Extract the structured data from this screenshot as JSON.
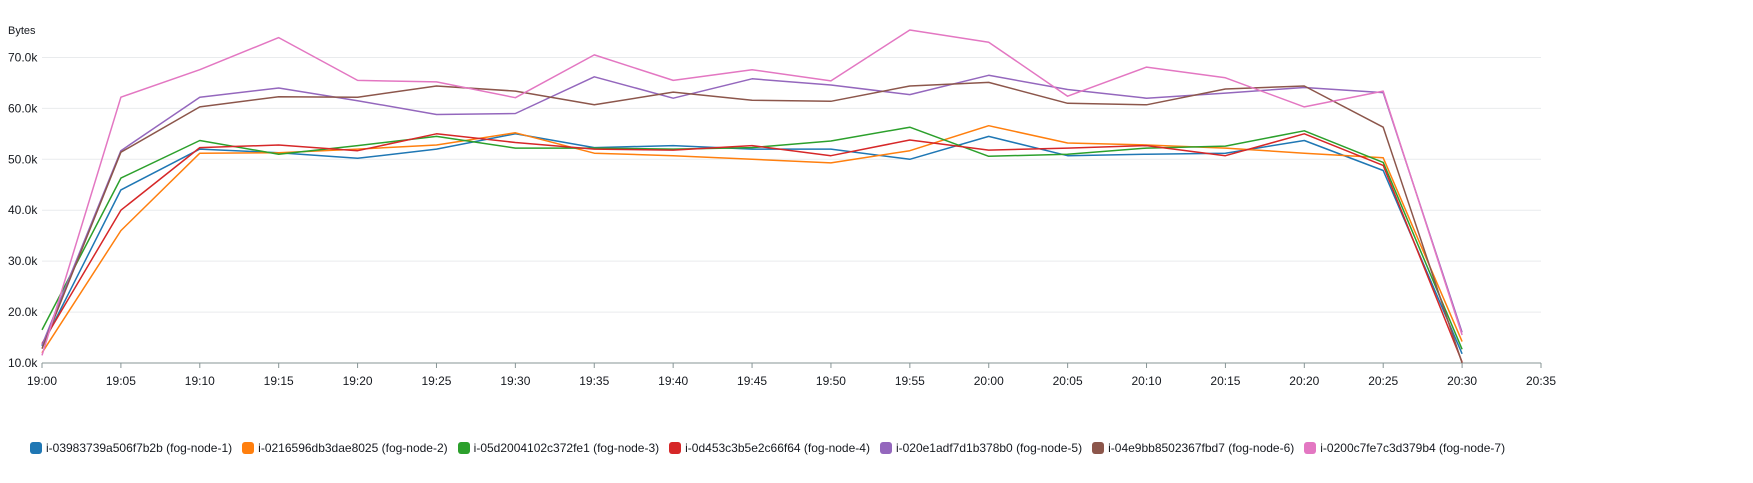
{
  "chart_data": {
    "type": "line",
    "ylabel": "Bytes",
    "ylim": [
      10000,
      75000
    ],
    "y_ticks": [
      "10.0k",
      "20.0k",
      "30.0k",
      "40.0k",
      "50.0k",
      "60.0k",
      "70.0k"
    ],
    "x_ticks": [
      "19:00",
      "19:05",
      "19:10",
      "19:15",
      "19:20",
      "19:25",
      "19:30",
      "19:35",
      "19:40",
      "19:45",
      "19:50",
      "19:55",
      "20:00",
      "20:05",
      "20:10",
      "20:15",
      "20:20",
      "20:25",
      "20:30",
      "20:35"
    ],
    "x": [
      "19:00",
      "19:05",
      "19:10",
      "19:15",
      "19:20",
      "19:25",
      "19:30",
      "19:35",
      "19:40",
      "19:45",
      "19:50",
      "19:55",
      "20:00",
      "20:05",
      "20:10",
      "20:15",
      "20:20",
      "20:25",
      "20:30"
    ],
    "grid": "horizontal",
    "legend_position": "bottom",
    "series": [
      {
        "name": "i-03983739a506f7b2b (fog-node-1)",
        "color": "#1f77b4",
        "values": [
          13300,
          44000,
          52000,
          51300,
          50200,
          52000,
          55000,
          52300,
          52700,
          52000,
          52000,
          50000,
          54500,
          50700,
          51000,
          51200,
          53700,
          47800,
          11800
        ]
      },
      {
        "name": "i-0216596db3dae8025 (fog-node-2)",
        "color": "#ff7f0e",
        "values": [
          12000,
          36000,
          51200,
          51300,
          52000,
          52800,
          55200,
          51200,
          50700,
          50000,
          49300,
          51700,
          56600,
          53200,
          52800,
          52200,
          51200,
          50300,
          14200
        ]
      },
      {
        "name": "i-05d2004102c372fe1 (fog-node-3)",
        "color": "#2ca02c",
        "values": [
          16500,
          46300,
          53700,
          51000,
          52700,
          54500,
          52200,
          52200,
          52000,
          52300,
          53600,
          56300,
          50600,
          51000,
          52200,
          52600,
          55600,
          49400,
          12700
        ]
      },
      {
        "name": "i-0d453c3b5e2c66f64 (fog-node-4)",
        "color": "#d62728",
        "values": [
          13800,
          40000,
          52300,
          52800,
          51700,
          55000,
          53300,
          52000,
          51800,
          52700,
          50700,
          53800,
          51800,
          52200,
          52700,
          50700,
          55000,
          48800,
          10200
        ]
      },
      {
        "name": "i-020e1adf7d1b378b0 (fog-node-5)",
        "color": "#9467bd",
        "values": [
          13500,
          51700,
          62200,
          64000,
          61500,
          58800,
          59000,
          66200,
          62000,
          65800,
          64600,
          62700,
          66500,
          63700,
          62000,
          63000,
          64100,
          63100,
          16000
        ]
      },
      {
        "name": "i-04e9bb8502367fbd7 (fog-node-6)",
        "color": "#8c564b",
        "values": [
          12800,
          51400,
          60300,
          62300,
          62200,
          64400,
          63400,
          60700,
          63200,
          61600,
          61400,
          64400,
          65100,
          61000,
          60700,
          63800,
          64400,
          56300,
          10000
        ]
      },
      {
        "name": "i-0200c7fe7c3d379b4 (fog-node-7)",
        "color": "#e377c2",
        "values": [
          11500,
          62200,
          67600,
          73900,
          65500,
          65200,
          62100,
          70500,
          65500,
          67600,
          65400,
          75400,
          73000,
          62400,
          68100,
          66000,
          60300,
          63400,
          15500
        ]
      }
    ]
  }
}
